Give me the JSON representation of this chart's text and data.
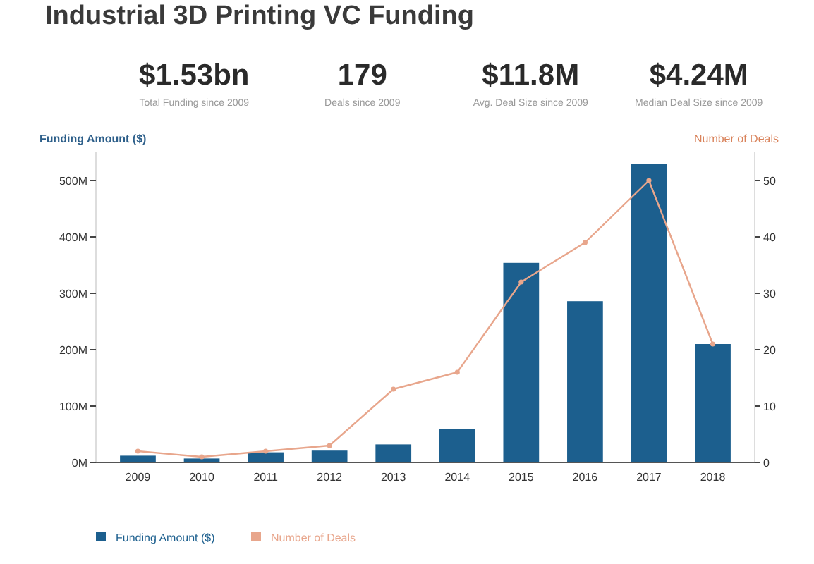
{
  "chart_data": [
    {
      "type": "other",
      "title": "Industrial 3D Printing VC Funding",
      "annotations": [
        "$1.53bn",
        "Total Funding since 2009",
        "179",
        "Deals since 2009",
        "$11.8M",
        "Avg. Deal Size since 2009",
        "$4.24M",
        "Median Deal Size since 2009"
      ]
    },
    {
      "type": "bar",
      "ylabel": "Funding Amount ($)",
      "y2label": "Number of Deals",
      "categories": [
        "2009",
        "2010",
        "2011",
        "2012",
        "2013",
        "2014",
        "2015",
        "2016",
        "2017",
        "2018"
      ],
      "series": [
        {
          "name": "Funding Amount ($)",
          "type": "bar",
          "color": "#1c5f8e",
          "values": [
            12,
            7,
            18,
            21,
            32,
            60,
            354,
            286,
            530,
            210
          ]
        },
        {
          "name": "Number of Deals",
          "type": "line",
          "axis": "y2",
          "color": "#e8a68c",
          "marker": "circle",
          "values": [
            2,
            1,
            2,
            3,
            13,
            16,
            32,
            39,
            50,
            21
          ]
        }
      ],
      "ylim": [
        0,
        550
      ],
      "yticks": [
        {
          "value": 0,
          "label": "0M"
        },
        {
          "value": 100,
          "label": "100M"
        },
        {
          "value": 200,
          "label": "200M"
        },
        {
          "value": 300,
          "label": "300M"
        },
        {
          "value": 400,
          "label": "400M"
        },
        {
          "value": 500,
          "label": "500M"
        }
      ],
      "y2lim": [
        0,
        55
      ],
      "y2ticks": [
        0,
        10,
        20,
        30,
        40,
        50
      ],
      "legend": "bottom",
      "grid": false
    }
  ]
}
